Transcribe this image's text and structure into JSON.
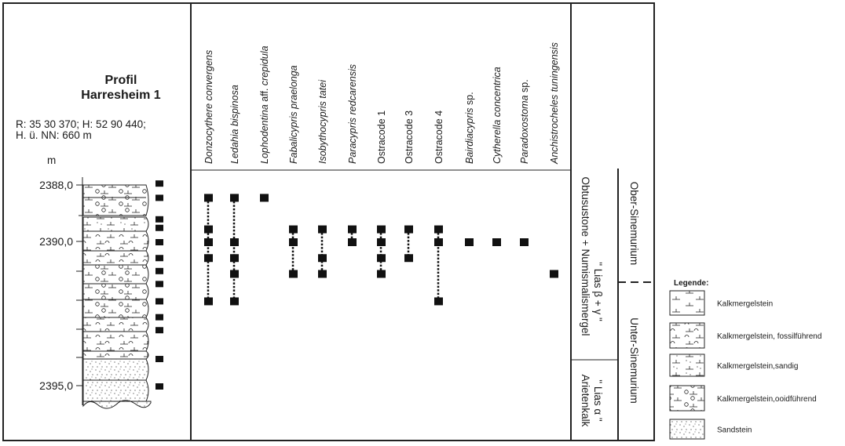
{
  "profile": {
    "title_line1": "Profil",
    "title_line2": "Harresheim 1",
    "coords_line1": "R: 35 30 370; H: 52 90 440;",
    "coords_line2": "H. ü. NN: 660 m",
    "unit": "m",
    "depth_labels": [
      "2388,0",
      "2390,0",
      "2395,0"
    ],
    "sample_depths_m": [
      2387.95,
      2388.45,
      2389.2,
      2389.5,
      2390.0,
      2390.55,
      2391.0,
      2391.45,
      2392.05,
      2392.6,
      2393.05,
      2394.05,
      2395.0
    ]
  },
  "sample_levels_m": [
    2388.45,
    2389.55,
    2390.0,
    2390.55,
    2391.1,
    2392.05
  ],
  "taxa": [
    {
      "parts": [
        {
          "t": "Donzocythere convergens",
          "i": true
        }
      ],
      "levels": [
        0,
        1,
        2,
        3,
        5
      ]
    },
    {
      "parts": [
        {
          "t": "Ledahia bispinosa",
          "i": true
        }
      ],
      "levels": [
        0,
        2,
        3,
        4,
        5
      ]
    },
    {
      "parts": [
        {
          "t": "Lophodentina",
          "i": true
        },
        {
          "t": " aff. ",
          "i": false
        },
        {
          "t": "crepidula",
          "i": true
        }
      ],
      "levels": [
        0
      ]
    },
    {
      "parts": [
        {
          "t": "Fabalicypris praelonga",
          "i": true
        }
      ],
      "levels": [
        1,
        2,
        4
      ]
    },
    {
      "parts": [
        {
          "t": "Isobythocypris tatei",
          "i": true
        }
      ],
      "levels": [
        1,
        3,
        4
      ]
    },
    {
      "parts": [
        {
          "t": "Paracypris redcarensis",
          "i": true
        }
      ],
      "levels": [
        1,
        2
      ]
    },
    {
      "parts": [
        {
          "t": "Ostracode 1",
          "i": false
        }
      ],
      "levels": [
        1,
        2,
        3,
        4
      ]
    },
    {
      "parts": [
        {
          "t": "Ostracode 3",
          "i": false
        }
      ],
      "levels": [
        1,
        3
      ]
    },
    {
      "parts": [
        {
          "t": "Ostracode 4",
          "i": false
        }
      ],
      "levels": [
        1,
        2,
        5
      ]
    },
    {
      "parts": [
        {
          "t": "Bairdiacypris",
          "i": true
        },
        {
          "t": " sp.",
          "i": false
        }
      ],
      "levels": [
        2
      ]
    },
    {
      "parts": [
        {
          "t": "Cytherella concentrica",
          "i": true
        }
      ],
      "levels": [
        2
      ]
    },
    {
      "parts": [
        {
          "t": "Paradoxostoma",
          "i": true
        },
        {
          "t": " sp.",
          "i": false
        }
      ],
      "levels": [
        2
      ]
    },
    {
      "parts": [
        {
          "t": "Anchistrocheles tuningensis",
          "i": true
        }
      ],
      "levels": [
        4
      ]
    }
  ],
  "stratigraphy": {
    "formation_upper": "Obtusustone + Numismalismergel",
    "formation_upper_sub": "\" Lias β + γ \"",
    "formation_lower": "Arietenkalk",
    "formation_lower_sub": "\" Lias α \"",
    "stage_upper": "Ober-Sinemurium",
    "stage_lower": "Unter-Sinemurium"
  },
  "legend": {
    "title": "Legende:",
    "items": [
      {
        "label": "Kalkmergelstein",
        "pattern": "kalk"
      },
      {
        "label": "Kalkmergelstein, fossilführend",
        "pattern": "fossil"
      },
      {
        "label": "Kalkmergelstein,sandig",
        "pattern": "sandig"
      },
      {
        "label": "Kalkmergelstein,ooidführend",
        "pattern": "ooid"
      },
      {
        "label": "Sandstein",
        "pattern": "sand"
      }
    ]
  }
}
